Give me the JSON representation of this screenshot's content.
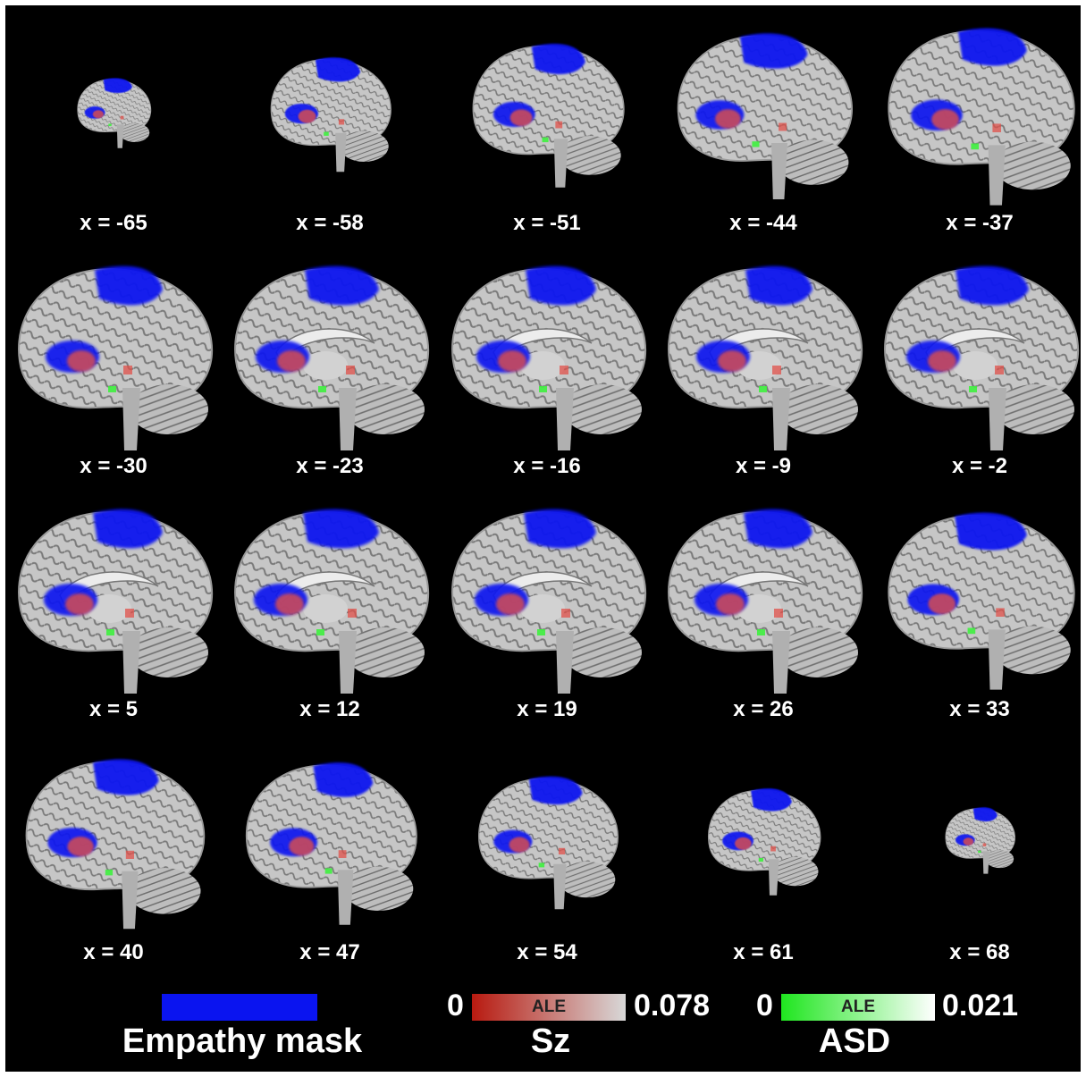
{
  "slices": [
    {
      "label": "x = -65"
    },
    {
      "label": "x = -58"
    },
    {
      "label": "x = -51"
    },
    {
      "label": "x = -44"
    },
    {
      "label": "x = -37"
    },
    {
      "label": "x = -30"
    },
    {
      "label": "x = -23"
    },
    {
      "label": "x = -16"
    },
    {
      "label": "x = -9"
    },
    {
      "label": "x = -2"
    },
    {
      "label": "x = 5"
    },
    {
      "label": "x = 12"
    },
    {
      "label": "x = 19"
    },
    {
      "label": "x = 26"
    },
    {
      "label": "x = 33"
    },
    {
      "label": "x = 40"
    },
    {
      "label": "x = 47"
    },
    {
      "label": "x = 54"
    },
    {
      "label": "x = 61"
    },
    {
      "label": "x = 68"
    }
  ],
  "legend": {
    "empathy": {
      "title": "Empathy mask",
      "color": "#0a14f0"
    },
    "sz": {
      "title": "Sz",
      "min": "0",
      "max": "0.078",
      "bar_label": "ALE",
      "color_low": "#b81a10",
      "color_high": "#d8d8d8"
    },
    "asd": {
      "title": "ASD",
      "min": "0",
      "max": "0.021",
      "bar_label": "ALE",
      "color_low": "#1fe61f",
      "color_high": "#ffffff"
    }
  },
  "colors": {
    "background": "#000000",
    "brain": "#b9b9b9",
    "empathy": "#0a14f0",
    "sz": "#e0504a",
    "asd": "#3ef03e"
  }
}
